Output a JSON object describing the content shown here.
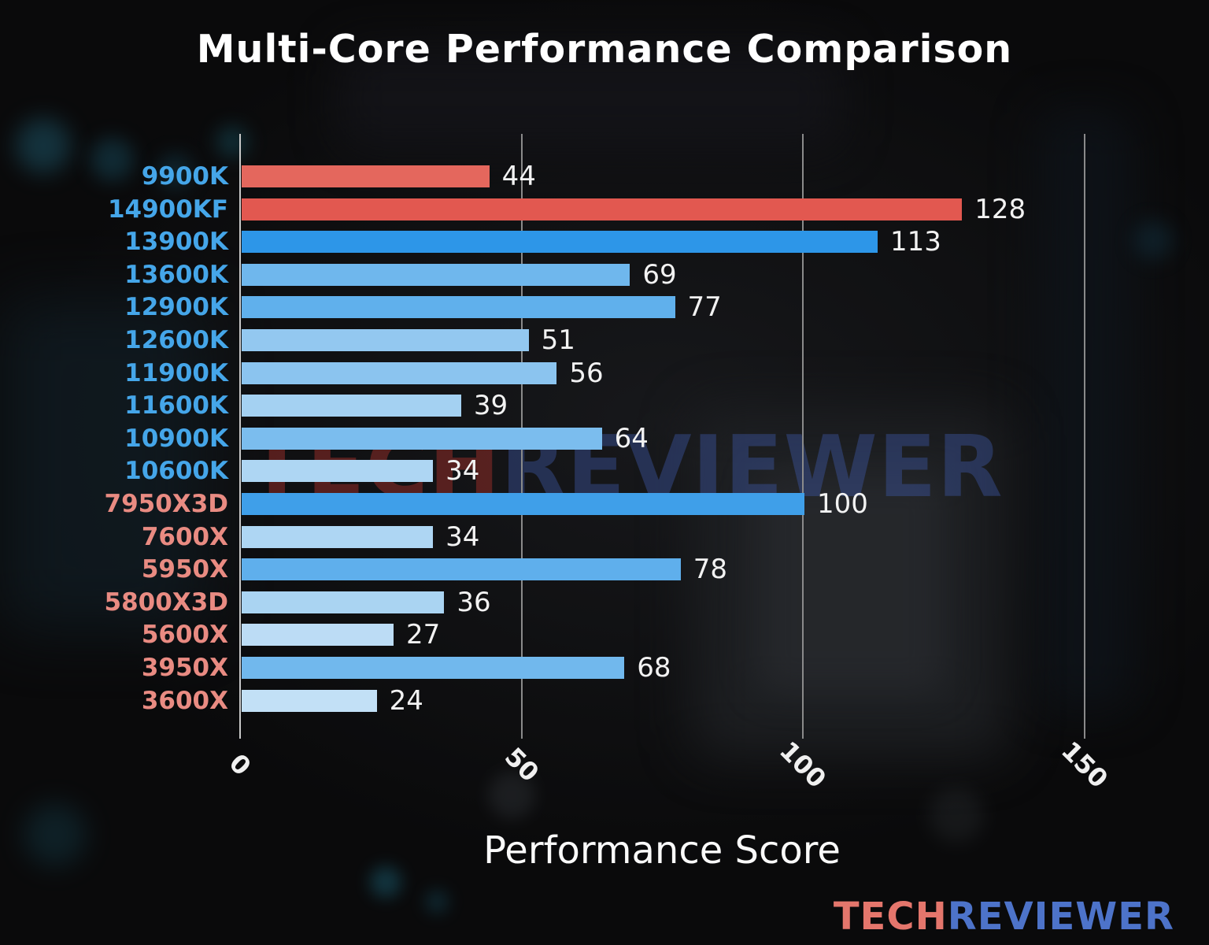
{
  "title": "Multi-Core Performance Comparison",
  "xlabel": "Performance Score",
  "watermark": {
    "part1": "TECH",
    "part2": "REVIEWER",
    "color1": "rgba(143,44,40,0.55)",
    "color2": "rgba(62,88,168,0.42)"
  },
  "logo": {
    "part1": "TECH",
    "part2": "REVIEWER",
    "color1": "#e4766c",
    "color2": "#4d73c9"
  },
  "style": {
    "title_color": "#ffffff",
    "value_label_color": "#f2f2f2",
    "grid_color": "#8a8a8a",
    "spine_color": "#c9c9c9",
    "intel_label_color": "#45a6e9",
    "amd_label_color": "#e98b82",
    "highlight_red": "#e25850"
  },
  "chart_data": {
    "type": "bar",
    "orientation": "horizontal",
    "title": "Multi-Core Performance Comparison",
    "xlabel": "Performance Score",
    "xlim": [
      0,
      150
    ],
    "xticks": [
      0,
      50,
      100,
      150
    ],
    "grid": true,
    "legend": "none",
    "categories": [
      "9900K",
      "14900KF",
      "13900K",
      "13600K",
      "12900K",
      "12600K",
      "11900K",
      "11600K",
      "10900K",
      "10600K",
      "7950X3D",
      "7600X",
      "5950X",
      "5800X3D",
      "5600X",
      "3950X",
      "3600X"
    ],
    "values": [
      44,
      128,
      113,
      69,
      77,
      51,
      56,
      39,
      64,
      34,
      100,
      34,
      78,
      36,
      27,
      68,
      24
    ],
    "rows": [
      {
        "label": "9900K",
        "value": 44,
        "label_color": "#45a6e9",
        "bar_color": "#e4675d"
      },
      {
        "label": "14900KF",
        "value": 128,
        "label_color": "#45a6e9",
        "bar_color": "#e25850"
      },
      {
        "label": "13900K",
        "value": 113,
        "label_color": "#45a6e9",
        "bar_color": "#2d96e8"
      },
      {
        "label": "13600K",
        "value": 69,
        "label_color": "#45a6e9",
        "bar_color": "#6fb7ed"
      },
      {
        "label": "12900K",
        "value": 77,
        "label_color": "#45a6e9",
        "bar_color": "#60b0ec"
      },
      {
        "label": "12600K",
        "value": 51,
        "label_color": "#45a6e9",
        "bar_color": "#93c8f0"
      },
      {
        "label": "11900K",
        "value": 56,
        "label_color": "#45a6e9",
        "bar_color": "#8bc4ef"
      },
      {
        "label": "11600K",
        "value": 39,
        "label_color": "#45a6e9",
        "bar_color": "#a4d1f2"
      },
      {
        "label": "10900K",
        "value": 64,
        "label_color": "#45a6e9",
        "bar_color": "#7bbdee"
      },
      {
        "label": "10600K",
        "value": 34,
        "label_color": "#45a6e9",
        "bar_color": "#aed6f3"
      },
      {
        "label": "7950X3D",
        "value": 100,
        "label_color": "#e98b82",
        "bar_color": "#3f9fe9"
      },
      {
        "label": "7600X",
        "value": 34,
        "label_color": "#e98b82",
        "bar_color": "#aed6f3"
      },
      {
        "label": "5950X",
        "value": 78,
        "label_color": "#e98b82",
        "bar_color": "#5fafec"
      },
      {
        "label": "5800X3D",
        "value": 36,
        "label_color": "#e98b82",
        "bar_color": "#aad4f2"
      },
      {
        "label": "5600X",
        "value": 27,
        "label_color": "#e98b82",
        "bar_color": "#bcdcf5"
      },
      {
        "label": "3950X",
        "value": 68,
        "label_color": "#e98b82",
        "bar_color": "#71b8ed"
      },
      {
        "label": "3600X",
        "value": 24,
        "label_color": "#e98b82",
        "bar_color": "#c2e0f6"
      }
    ]
  }
}
